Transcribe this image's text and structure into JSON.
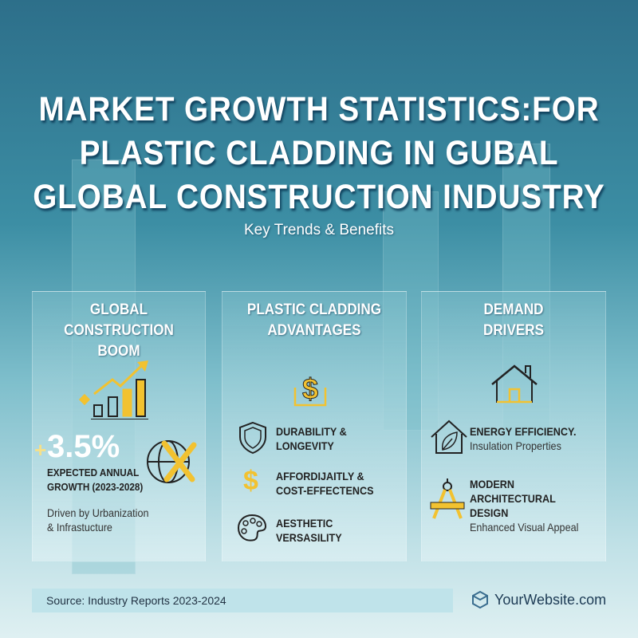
{
  "title": {
    "lines": [
      "MARKET GROWTH STATISTICS:FOR",
      "PLASTIC CLADDING IN GUBAL",
      "GLOBAL CONSTRUCTION INDUSTRY"
    ],
    "subtitle": "Key Trends & Benefits"
  },
  "cards": [
    {
      "heading": [
        "GLOBAL CONSTRUCTION",
        "BOOM"
      ],
      "icon": "bar-chart-growth-icon",
      "stat_plus": "+",
      "stat": "3.5%",
      "stat_label": [
        "EXPECTED ANNUAL",
        "GROWTH (2023-2028)"
      ],
      "note": [
        "Driven by Urbanization",
        "& Infrastucture"
      ],
      "side_icon": "globe-tools-icon"
    },
    {
      "heading": [
        "PLASTIC CLADDING",
        "ADVANTAGES"
      ],
      "icon": "dollar-growth-icon",
      "items": [
        {
          "icon": "shield-icon",
          "lines": [
            "DURABILITY &",
            "LONGEVITY"
          ]
        },
        {
          "icon": "dollar-icon",
          "lines": [
            "AFFORDIJAITLY &",
            "COST-EFFECTENCS"
          ]
        },
        {
          "icon": "palette-icon",
          "lines": [
            "AESTHETIC",
            "VERSASILITY"
          ]
        }
      ]
    },
    {
      "heading": [
        "DEMAND",
        "DRIVERS"
      ],
      "icon": "house-icon",
      "items": [
        {
          "icon": "eco-house-icon",
          "title": [
            "ENERGY EFFICIENCY."
          ],
          "desc": "Insulation Properties"
        },
        {
          "icon": "compass-ruler-icon",
          "title": [
            "MODERN",
            "ARCHITECTURAL DESIGN"
          ],
          "desc": "Enhanced Visual Appeal"
        }
      ]
    }
  ],
  "footer": {
    "source": "Source: Industry Reports 2023-2024",
    "website": "YourWebsite.com"
  },
  "colors": {
    "accent": "#f2c230",
    "text_dark": "#222222"
  }
}
